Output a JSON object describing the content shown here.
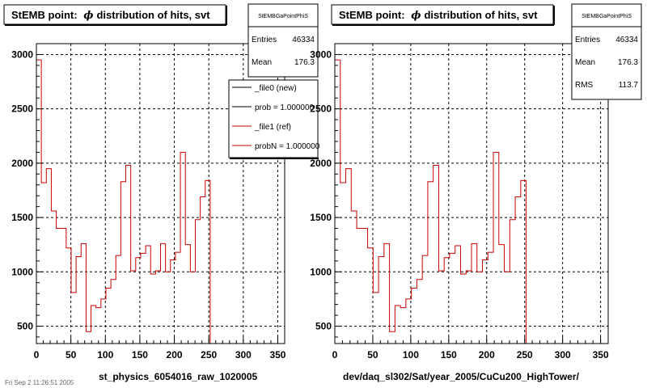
{
  "chart_data": [
    {
      "type": "line",
      "title_prefix": "StEMB point:",
      "title_phi": "ϕ",
      "title_suffix": "distribution of hits, svt",
      "xlabel": "st_physics_6054016_raw_1020005",
      "xlim": [
        0,
        360
      ],
      "ylim": [
        340,
        3100
      ],
      "xticks": [
        0,
        50,
        100,
        150,
        200,
        250,
        300,
        350
      ],
      "yticks": [
        500,
        1000,
        1500,
        2000,
        2500,
        3000
      ],
      "grid": true,
      "bin_width": 7.2,
      "series": [
        {
          "name": "_file1 (ref)",
          "color": "#cc0000",
          "values": [
            2950,
            1820,
            1950,
            1560,
            1400,
            1400,
            1220,
            810,
            1140,
            1260,
            450,
            690,
            670,
            750,
            850,
            930,
            1150,
            1830,
            1980,
            1010,
            1130,
            1170,
            1240,
            980,
            1010,
            1260,
            1000,
            1110,
            1180,
            2100,
            1250,
            1000,
            1480,
            1690,
            1840
          ]
        }
      ],
      "stats": {
        "name": "StEMBGaPointPhiS",
        "entries_label": "Entries",
        "entries": "46334",
        "mean_label": "Mean",
        "mean": "176.3"
      },
      "legend": [
        {
          "label": "_file0 (new)",
          "color": "#000000"
        },
        {
          "label": "prob = 1.000000",
          "color": "#000000"
        },
        {
          "label": "_file1 (ref)",
          "color": "#cc0000"
        },
        {
          "label": "probN = 1.000000",
          "color": "#cc0000"
        }
      ]
    },
    {
      "type": "line",
      "title_prefix": "StEMB point:",
      "title_phi": "ϕ",
      "title_suffix": "distribution of hits, svt",
      "xlabel": "dev/daq_sl302/Sat/year_2005/CuCu200_HighTower/",
      "xlim": [
        0,
        360
      ],
      "ylim": [
        340,
        3100
      ],
      "xticks": [
        0,
        50,
        100,
        150,
        200,
        250,
        300,
        350
      ],
      "yticks": [
        500,
        1000,
        1500,
        2000,
        2500,
        3000
      ],
      "grid": true,
      "bin_width": 7.2,
      "series": [
        {
          "name": "_file1 (ref)",
          "color": "#cc0000",
          "values": [
            2950,
            1820,
            1950,
            1560,
            1400,
            1400,
            1220,
            810,
            1140,
            1260,
            450,
            690,
            670,
            750,
            850,
            930,
            1150,
            1830,
            1980,
            1010,
            1130,
            1170,
            1240,
            980,
            1010,
            1260,
            1000,
            1110,
            1180,
            2100,
            1250,
            1000,
            1480,
            1690,
            1840
          ]
        }
      ],
      "stats": {
        "name": "StEMBGaPointPhiS",
        "entries_label": "Entries",
        "entries": "46334",
        "mean_label": "Mean",
        "mean": "176.3",
        "rms_label": "RMS",
        "rms": "113.7"
      }
    }
  ],
  "footer_date": "Fri Sep 2 11:26:51 2005"
}
